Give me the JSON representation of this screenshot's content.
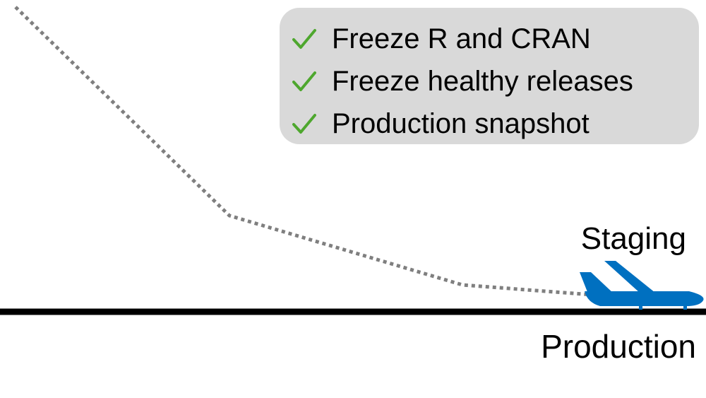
{
  "checklist": {
    "items": [
      {
        "label": "Freeze R and CRAN",
        "icon": "checkmark-icon"
      },
      {
        "label": "Freeze healthy releases",
        "icon": "checkmark-icon"
      },
      {
        "label": "Production snapshot",
        "icon": "checkmark-icon"
      }
    ]
  },
  "labels": {
    "staging": "Staging",
    "production": "Production"
  },
  "colors": {
    "check": "#4ea72e",
    "plane": "#0070c0",
    "path": "#7f7f7f",
    "ground": "#000000",
    "box": "#d9d9d9"
  }
}
